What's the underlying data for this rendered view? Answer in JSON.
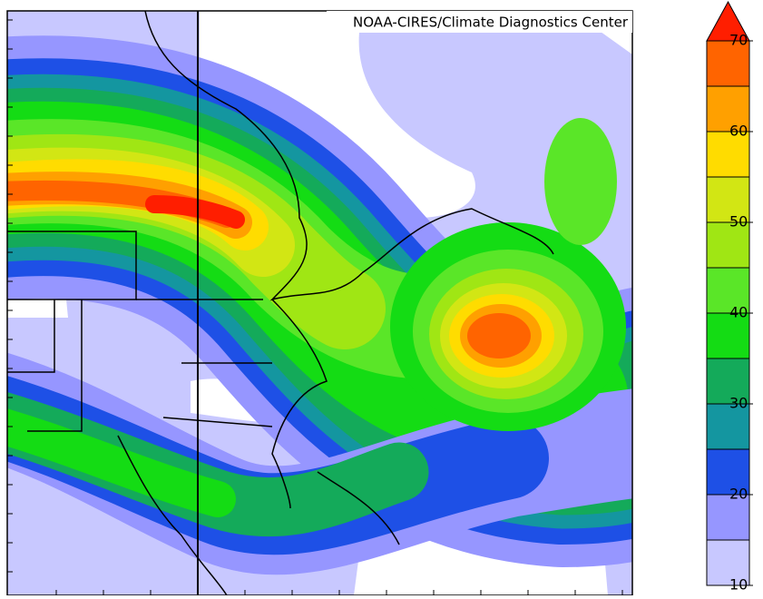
{
  "credit": "NOAA-CIRES/Climate Diagnostics Center",
  "colorbar": {
    "lim": [
      10,
      70
    ],
    "ticks": [
      10,
      20,
      30,
      40,
      50,
      60,
      70
    ],
    "step": 5,
    "colors": [
      "#c8c8ff",
      "#9696ff",
      "#1e50e6",
      "#1496a0",
      "#14aa5a",
      "#14dc14",
      "#5ae628",
      "#a0e614",
      "#d2e614",
      "#ffdc00",
      "#ffa000",
      "#ff6400"
    ],
    "over_color": "#ff1e00"
  }
}
